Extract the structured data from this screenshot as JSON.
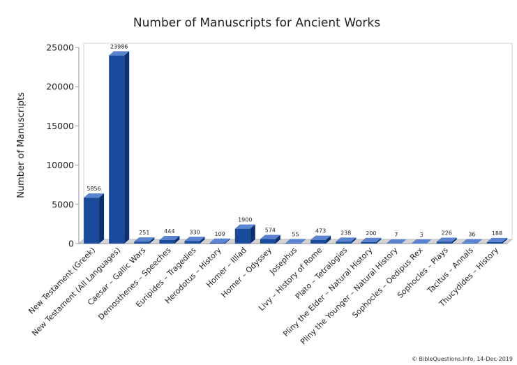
{
  "chart_data": {
    "type": "bar",
    "title": "Number of Manuscripts for Ancient Works",
    "xlabel": "",
    "ylabel": "Number of Manuscripts",
    "ylim": [
      0,
      25000
    ],
    "yticks": [
      0,
      5000,
      10000,
      15000,
      20000,
      25000
    ],
    "grid": "none",
    "legend": "none",
    "bar_color": "#1a4a9c",
    "categories": [
      "New Testament (Greek)",
      "New Testament (All Languages)",
      "Caesar – Gallic Wars",
      "Demosthenes – Speeches",
      "Euripides – Tragedies",
      "Herodotus – History",
      "Homer – Illiad",
      "Homer – Odyssey",
      "Josephus",
      "Livy – History of Rome",
      "Plato – Tetralogies",
      "Pliny the Elder – Natural History",
      "Pliny the Younger – Natural History",
      "Sophocles – Oedipus Rex",
      "Sophocles – Plays",
      "Tacitus – Annals",
      "Thucydides – History"
    ],
    "values": [
      5856,
      23986,
      251,
      444,
      330,
      109,
      1900,
      574,
      55,
      473,
      238,
      200,
      7,
      3,
      226,
      36,
      188
    ],
    "annotation": "© BibleQuestions.Info, 14-Dec-2019"
  }
}
